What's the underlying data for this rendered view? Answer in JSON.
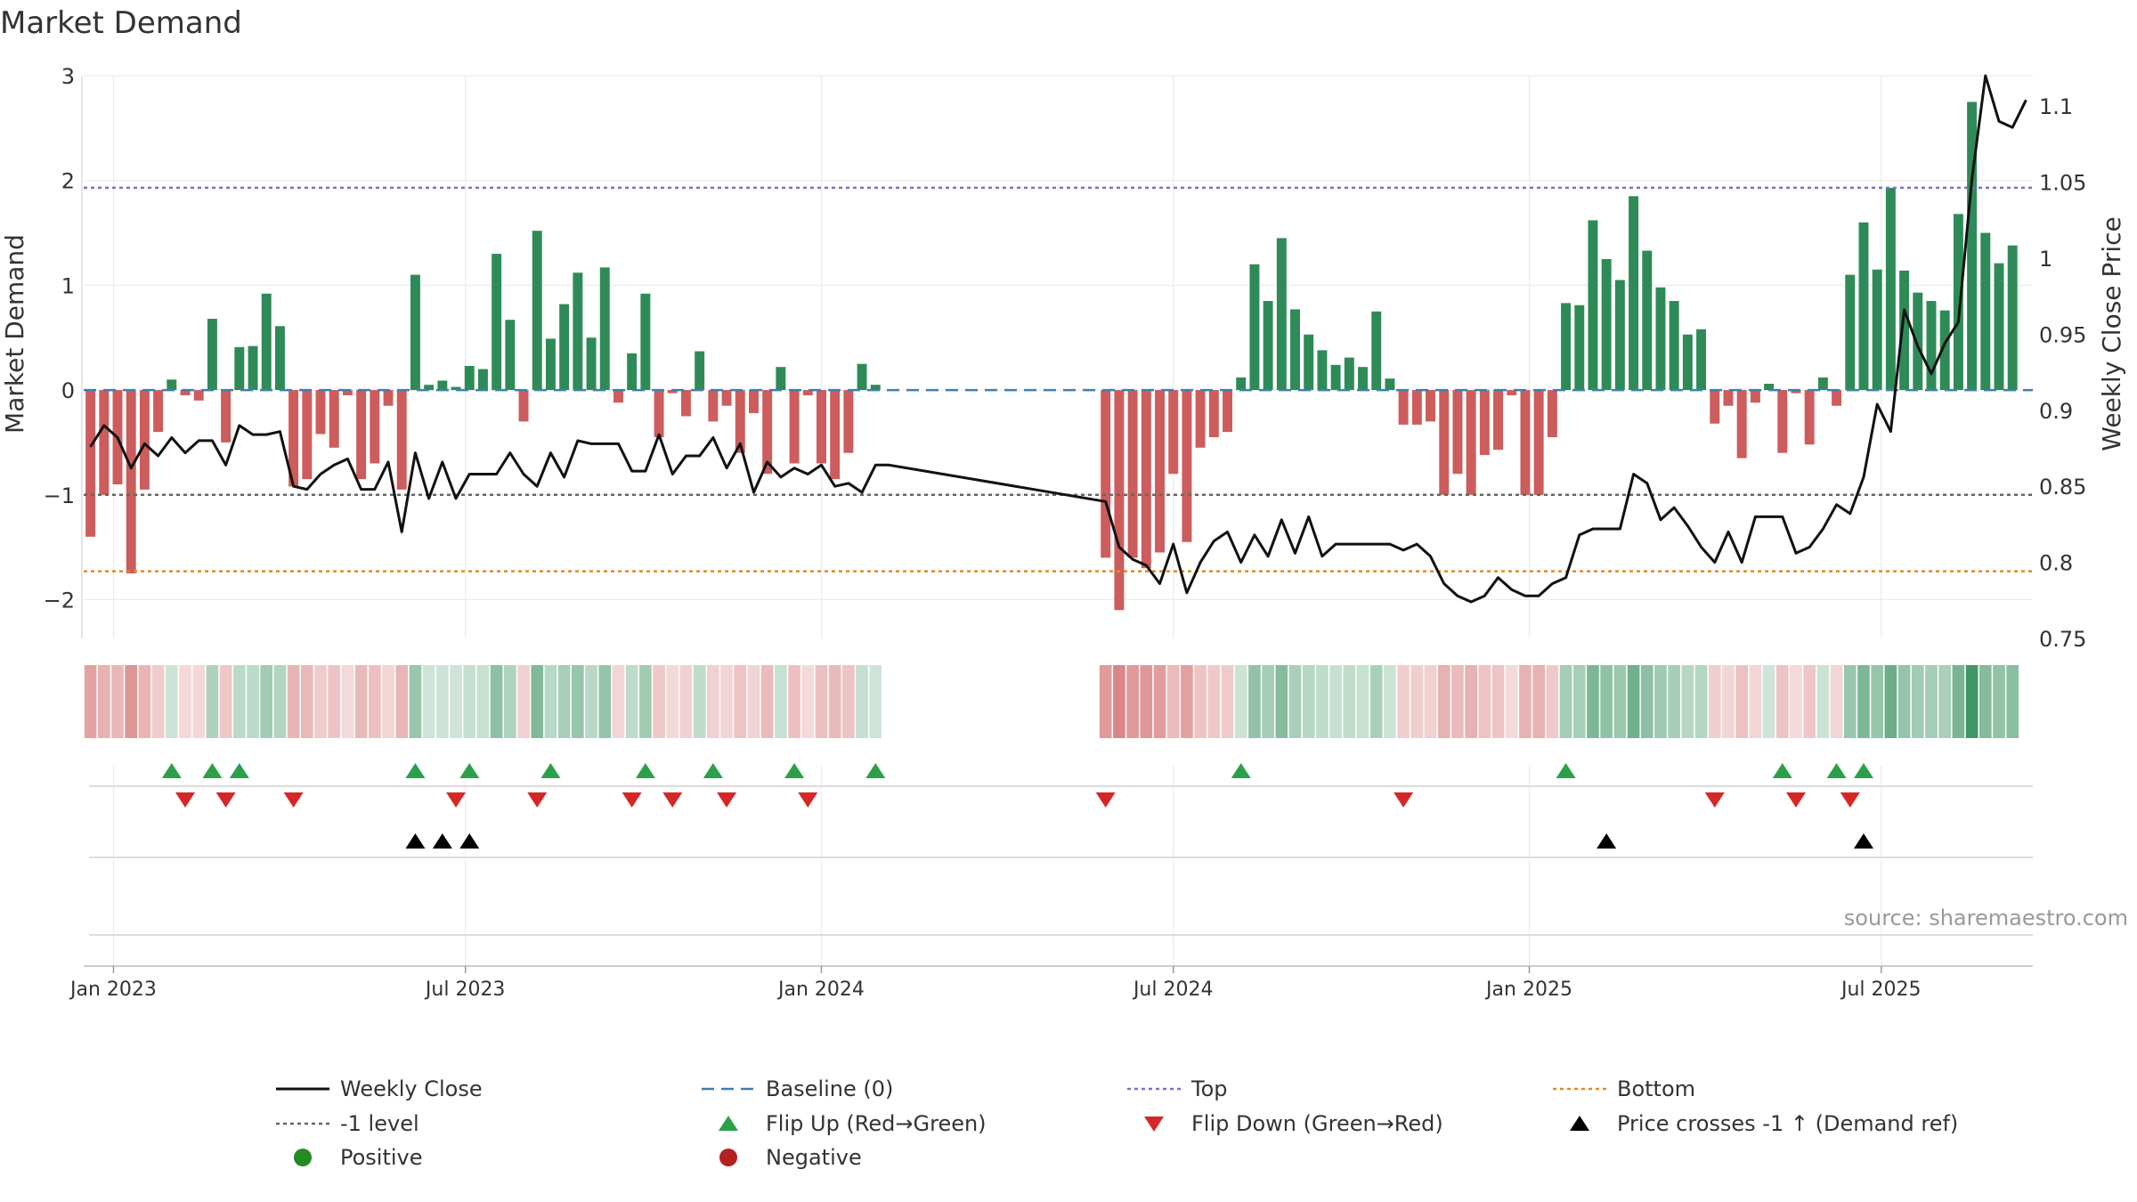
{
  "chart_data": {
    "type": "bar",
    "title": "Market Demand",
    "source": "source: sharemaestro.com",
    "ylabel_left": "Market Demand",
    "ylabel_right": "Weekly Close Price",
    "ylim_left": [
      -2.37,
      3
    ],
    "ylim_right": [
      0.75,
      1.12
    ],
    "yticks_left": [
      {
        "value": 3,
        "label": "3"
      },
      {
        "value": 2,
        "label": "2"
      },
      {
        "value": 1,
        "label": "1"
      },
      {
        "value": 0,
        "label": "0"
      },
      {
        "value": -1,
        "label": "−1"
      },
      {
        "value": -2,
        "label": "−2"
      }
    ],
    "yticks_right": [
      {
        "value": 1.1,
        "label": "1.1"
      },
      {
        "value": 1.05,
        "label": "1.05"
      },
      {
        "value": 1.0,
        "label": "1"
      },
      {
        "value": 0.95,
        "label": "0.95"
      },
      {
        "value": 0.9,
        "label": "0.9"
      },
      {
        "value": 0.85,
        "label": "0.85"
      },
      {
        "value": 0.8,
        "label": "0.8"
      },
      {
        "value": 0.75,
        "label": "0.75"
      }
    ],
    "x_start_week": -1.5,
    "x_end_week": 142.5,
    "xticks": [
      {
        "week": 0.7,
        "label": "Jan 2023"
      },
      {
        "week": 26.7,
        "label": "Jul 2023"
      },
      {
        "week": 53,
        "label": "Jan 2024"
      },
      {
        "week": 79,
        "label": "Jul 2024"
      },
      {
        "week": 105.3,
        "label": "Jan 2025"
      },
      {
        "week": 131.3,
        "label": "Jul 2025"
      }
    ],
    "reference_lines": [
      {
        "name": "top",
        "value": 1.93,
        "color": "#7b6fd0",
        "dash": "4,4"
      },
      {
        "name": "minus-one",
        "value": -1,
        "color": "#666666",
        "dash": "4,4"
      },
      {
        "name": "bottom",
        "value": -1.73,
        "color": "#e08a1e",
        "dash": "4,4"
      },
      {
        "name": "baseline",
        "value": 0,
        "color": "#3d7fb0",
        "dash": "14,8"
      }
    ],
    "segments": [
      {
        "start_week": -1,
        "demand": [
          -1.4,
          -1.0,
          -0.9,
          -1.75,
          -0.95,
          -0.4,
          0.1,
          -0.05,
          -0.1,
          0.68,
          -0.5,
          0.41,
          0.42,
          0.92,
          0.61,
          -0.92,
          -0.85,
          -0.42,
          -0.55,
          -0.05,
          -0.85,
          -0.7,
          -0.15,
          -0.95,
          1.1,
          0.05,
          0.09,
          0.03,
          0.23,
          0.2,
          1.3,
          0.67,
          -0.3,
          1.52,
          0.49,
          0.82,
          1.12,
          0.5,
          1.17,
          -0.12,
          0.35,
          0.92,
          -0.45,
          -0.03,
          -0.25,
          0.37,
          -0.3,
          -0.15,
          -0.6,
          -0.22,
          -0.8,
          0.22,
          -0.7,
          -0.05,
          -0.7,
          -0.85,
          -0.6,
          0.25,
          0.05
        ],
        "close": [
          0.876,
          0.89,
          0.882,
          0.862,
          0.878,
          0.87,
          0.882,
          0.872,
          0.88,
          0.88,
          0.864,
          0.89,
          0.884,
          0.884,
          0.886,
          0.85,
          0.848,
          0.858,
          0.864,
          0.868,
          0.848,
          0.848,
          0.866,
          0.82,
          0.872,
          0.842,
          0.866,
          0.842,
          0.858,
          0.858,
          0.858,
          0.872,
          0.858,
          0.85,
          0.872,
          0.856,
          0.88,
          0.878,
          0.878,
          0.878,
          0.86,
          0.86,
          0.884,
          0.858,
          0.87,
          0.87,
          0.882,
          0.862,
          0.878,
          0.846,
          0.866,
          0.856,
          0.862,
          0.858,
          0.864,
          0.85,
          0.852,
          0.846,
          0.864,
          0.864
        ]
      },
      {
        "start_week": 74,
        "demand": [
          -1.6,
          -2.1,
          -1.6,
          -1.7,
          -1.55,
          -0.8,
          -1.45,
          -0.55,
          -0.45,
          -0.4,
          0.12,
          1.2,
          0.85,
          1.45,
          0.77,
          0.53,
          0.38,
          0.24,
          0.31,
          0.22,
          0.75,
          0.11,
          -0.33,
          -0.33,
          -0.3,
          -1.0,
          -0.8,
          -1.0,
          -0.62,
          -0.57,
          -0.05,
          -1.0,
          -1.0,
          -0.45,
          0.83,
          0.81,
          1.62,
          1.25,
          1.05,
          1.85,
          1.33,
          0.98,
          0.85,
          0.53,
          0.58,
          -0.32,
          -0.15,
          -0.65,
          -0.12,
          0.06,
          -0.6,
          -0.03,
          -0.52,
          0.12,
          -0.15,
          1.1,
          1.6,
          1.15,
          1.93,
          1.14,
          0.93,
          0.85,
          0.76,
          1.68,
          2.75,
          1.5,
          1.21,
          1.38
        ],
        "close": [
          0.84,
          0.81,
          0.802,
          0.798,
          0.786,
          0.812,
          0.78,
          0.8,
          0.814,
          0.82,
          0.8,
          0.818,
          0.804,
          0.828,
          0.806,
          0.83,
          0.804,
          0.812,
          0.812,
          0.812,
          0.812,
          0.812,
          0.808,
          0.812,
          0.804,
          0.786,
          0.778,
          0.774,
          0.778,
          0.79,
          0.782,
          0.778,
          0.778,
          0.786,
          0.79,
          0.818,
          0.822,
          0.822,
          0.822,
          0.858,
          0.852,
          0.828,
          0.836,
          0.824,
          0.81,
          0.8,
          0.82,
          0.8,
          0.83,
          0.83,
          0.83,
          0.806,
          0.81,
          0.822,
          0.838,
          0.832,
          0.856,
          0.904,
          0.886,
          0.966,
          0.942,
          0.924,
          0.944,
          0.958,
          1.052,
          1.12,
          1.09,
          1.086,
          1.104
        ]
      }
    ],
    "heat_strip": {
      "positive_color": "#2e8b57",
      "negative_color": "#cd5c5c"
    },
    "markers": {
      "flip_up_weeks": [
        5,
        8,
        10,
        23,
        27,
        33,
        40,
        45,
        51,
        57,
        84,
        108,
        124,
        128,
        130
      ],
      "flip_down_weeks": [
        6,
        9,
        14,
        26,
        32,
        39,
        42,
        46,
        52,
        74,
        96,
        119,
        125,
        129
      ],
      "price_cross_weeks": [
        23,
        25,
        27,
        111,
        130
      ]
    },
    "series_colors": {
      "weekly_close": "#111111",
      "bar_positive": "#2e8b57",
      "bar_negative": "#cd5c5c",
      "flip_up": "#2ca048",
      "flip_down": "#d62728",
      "price_cross": "#000000",
      "positive_dot": "#228b22",
      "negative_dot": "#b22222"
    },
    "legend": [
      {
        "label": "Weekly Close",
        "key": "line-solid",
        "color": "#111111"
      },
      {
        "label": "Baseline (0)",
        "key": "line-dashed",
        "color": "#3d7fb0"
      },
      {
        "label": "Top",
        "key": "line-dotted",
        "color": "#7b6fd0"
      },
      {
        "label": "Bottom",
        "key": "line-dotted",
        "color": "#e08a1e"
      },
      {
        "label": "-1 level",
        "key": "line-dotted",
        "color": "#666666"
      },
      {
        "label": "Flip Up (Red→Green)",
        "key": "triangle-up",
        "color": "#2ca048"
      },
      {
        "label": "Flip Down (Green→Red)",
        "key": "triangle-down",
        "color": "#d62728"
      },
      {
        "label": "Price crosses -1 ↑ (Demand ref)",
        "key": "triangle-up",
        "color": "#000000"
      },
      {
        "label": "Positive",
        "key": "dot",
        "color": "#228b22"
      },
      {
        "label": "Negative",
        "key": "dot",
        "color": "#b22222"
      }
    ]
  }
}
